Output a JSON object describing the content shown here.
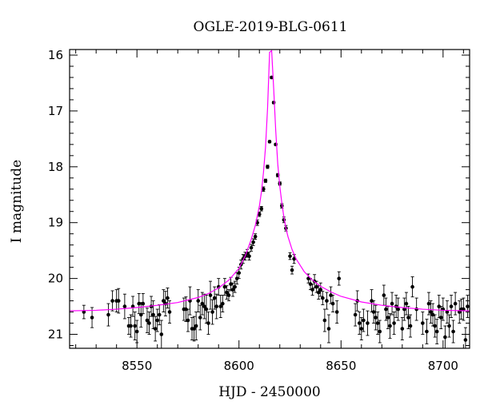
{
  "chart_data": {
    "type": "scatter",
    "title": "OGLE-2019-BLG-0611",
    "xlabel": "HJD - 2450000",
    "ylabel": "I magnitude",
    "xlim": [
      8517,
      8713
    ],
    "ylim": [
      21.25,
      15.9
    ],
    "y_inverted": true,
    "grid": false,
    "legend": "none",
    "xticks": [
      8550,
      8600,
      8650,
      8700
    ],
    "xtick_labels": [
      "8550",
      "8600",
      "8650",
      "8700"
    ],
    "yticks": [
      16,
      17,
      18,
      19,
      20,
      21
    ],
    "ytick_labels": [
      "16",
      "17",
      "18",
      "19",
      "20",
      "21"
    ],
    "colors": {
      "points": "#000000",
      "model": "#ff00ff"
    },
    "series": [
      {
        "kind": "points_with_errorbars",
        "x": [
          8524,
          8528,
          8536,
          8538,
          8540,
          8541,
          8544,
          8546,
          8547,
          8548,
          8549,
          8550,
          8551,
          8552,
          8553,
          8555,
          8556,
          8557,
          8558,
          8559,
          8560,
          8561,
          8562,
          8563,
          8564,
          8565,
          8566,
          8573,
          8574,
          8575,
          8576,
          8577,
          8578,
          8579,
          8580,
          8581,
          8582,
          8583,
          8584,
          8585,
          8586,
          8587,
          8588,
          8589,
          8590,
          8591,
          8592,
          8593,
          8594,
          8595,
          8596,
          8597,
          8598,
          8599,
          8600,
          8601,
          8602,
          8603,
          8604,
          8605,
          8606,
          8607,
          8608,
          8609,
          8610,
          8611,
          8612,
          8613,
          8614,
          8615,
          8616,
          8617,
          8618,
          8619,
          8620,
          8621,
          8622,
          8623,
          8625,
          8626,
          8627,
          8634,
          8635,
          8636,
          8637,
          8638,
          8639,
          8640,
          8641,
          8642,
          8643,
          8644,
          8645,
          8646,
          8648,
          8649,
          8657,
          8658,
          8659,
          8660,
          8661,
          8663,
          8665,
          8666,
          8667,
          8668,
          8669,
          8671,
          8672,
          8673,
          8674,
          8675,
          8676,
          8677,
          8678,
          8680,
          8681,
          8682,
          8683,
          8684,
          8685,
          8687,
          8690,
          8692,
          8693,
          8694,
          8695,
          8696,
          8697,
          8698,
          8699,
          8700,
          8701,
          8702,
          8703,
          8704,
          8705,
          8706,
          8708,
          8709,
          8710,
          8711,
          8712
        ],
        "y": [
          20.6,
          20.7,
          20.65,
          20.4,
          20.4,
          20.4,
          20.5,
          20.85,
          20.85,
          20.5,
          20.85,
          20.95,
          20.45,
          20.65,
          20.45,
          20.75,
          20.8,
          20.5,
          20.65,
          20.9,
          20.75,
          20.65,
          21.0,
          20.4,
          20.45,
          20.35,
          20.6,
          20.55,
          20.55,
          20.75,
          20.4,
          20.9,
          20.9,
          20.85,
          20.4,
          20.7,
          20.45,
          20.5,
          20.55,
          20.8,
          20.3,
          20.6,
          20.35,
          20.5,
          20.15,
          20.5,
          20.45,
          20.15,
          20.25,
          20.3,
          20.1,
          20.2,
          20.15,
          20.0,
          19.9,
          19.75,
          19.65,
          19.6,
          19.55,
          19.6,
          19.45,
          19.35,
          19.25,
          19.0,
          18.85,
          18.75,
          18.4,
          18.25,
          18.0,
          17.55,
          16.4,
          16.85,
          17.6,
          18.15,
          18.3,
          18.7,
          18.95,
          19.1,
          19.6,
          19.85,
          19.65,
          20.0,
          20.1,
          20.2,
          20.05,
          20.15,
          20.25,
          20.2,
          20.35,
          20.75,
          20.4,
          20.9,
          20.3,
          20.45,
          20.6,
          20.0,
          20.65,
          20.4,
          20.8,
          20.9,
          20.75,
          20.8,
          20.4,
          20.6,
          20.7,
          20.8,
          20.95,
          20.3,
          20.55,
          20.7,
          20.85,
          20.45,
          20.8,
          20.5,
          20.55,
          20.9,
          20.55,
          20.45,
          20.7,
          20.85,
          20.15,
          20.55,
          20.8,
          20.95,
          20.45,
          20.6,
          20.65,
          20.85,
          20.95,
          20.5,
          20.7,
          20.55,
          21.05,
          20.6,
          20.85,
          20.5,
          20.95,
          20.45,
          20.6,
          20.55,
          20.55,
          21.1,
          20.5
        ],
        "yerr": [
          0.12,
          0.18,
          0.2,
          0.18,
          0.2,
          0.22,
          0.22,
          0.15,
          0.2,
          0.18,
          0.25,
          0.2,
          0.18,
          0.22,
          0.18,
          0.22,
          0.2,
          0.18,
          0.25,
          0.22,
          0.2,
          0.18,
          0.25,
          0.2,
          0.22,
          0.18,
          0.2,
          0.2,
          0.22,
          0.2,
          0.25,
          0.2,
          0.22,
          0.25,
          0.2,
          0.22,
          0.2,
          0.22,
          0.25,
          0.2,
          0.25,
          0.22,
          0.2,
          0.22,
          0.15,
          0.2,
          0.15,
          0.15,
          0.12,
          0.1,
          0.12,
          0.12,
          0.1,
          0.1,
          0.1,
          0.08,
          0.08,
          0.07,
          0.07,
          0.07,
          0.06,
          0.06,
          0.05,
          0.05,
          0.04,
          0.04,
          0.04,
          0.03,
          0.03,
          0.02,
          0.02,
          0.02,
          0.02,
          0.03,
          0.03,
          0.04,
          0.05,
          0.05,
          0.06,
          0.07,
          0.08,
          0.08,
          0.1,
          0.1,
          0.12,
          0.1,
          0.12,
          0.12,
          0.12,
          0.2,
          0.15,
          0.25,
          0.15,
          0.15,
          0.2,
          0.12,
          0.2,
          0.18,
          0.2,
          0.2,
          0.2,
          0.22,
          0.2,
          0.2,
          0.22,
          0.2,
          0.2,
          0.18,
          0.2,
          0.2,
          0.22,
          0.2,
          0.2,
          0.2,
          0.2,
          0.2,
          0.2,
          0.2,
          0.2,
          0.2,
          0.18,
          0.2,
          0.2,
          0.22,
          0.2,
          0.2,
          0.2,
          0.2,
          0.22,
          0.2,
          0.2,
          0.2,
          0.2,
          0.2,
          0.2,
          0.2,
          0.2,
          0.2,
          0.2,
          0.18,
          0.2,
          0.22,
          0.2
        ]
      },
      {
        "kind": "model_curve",
        "x": [
          8517,
          8530,
          8540,
          8550,
          8560,
          8570,
          8580,
          8585,
          8590,
          8595,
          8600,
          8603,
          8606,
          8608,
          8610,
          8611,
          8612,
          8613,
          8614,
          8615,
          8616,
          8617,
          8618,
          8619,
          8620,
          8621,
          8622,
          8623,
          8624,
          8626,
          8628,
          8632,
          8636,
          8640,
          8645,
          8650,
          8660,
          8670,
          8680,
          8690,
          8700,
          8713
        ],
        "y": [
          20.58,
          20.57,
          20.55,
          20.52,
          20.48,
          20.43,
          20.34,
          20.27,
          20.17,
          20.03,
          19.82,
          19.6,
          19.3,
          19.05,
          18.7,
          18.45,
          18.1,
          17.65,
          16.95,
          15.95,
          15.92,
          16.6,
          17.35,
          17.95,
          18.35,
          18.65,
          18.9,
          19.1,
          19.25,
          19.48,
          19.65,
          19.88,
          20.03,
          20.14,
          20.24,
          20.32,
          20.42,
          20.48,
          20.52,
          20.55,
          20.57,
          20.58
        ]
      }
    ]
  }
}
